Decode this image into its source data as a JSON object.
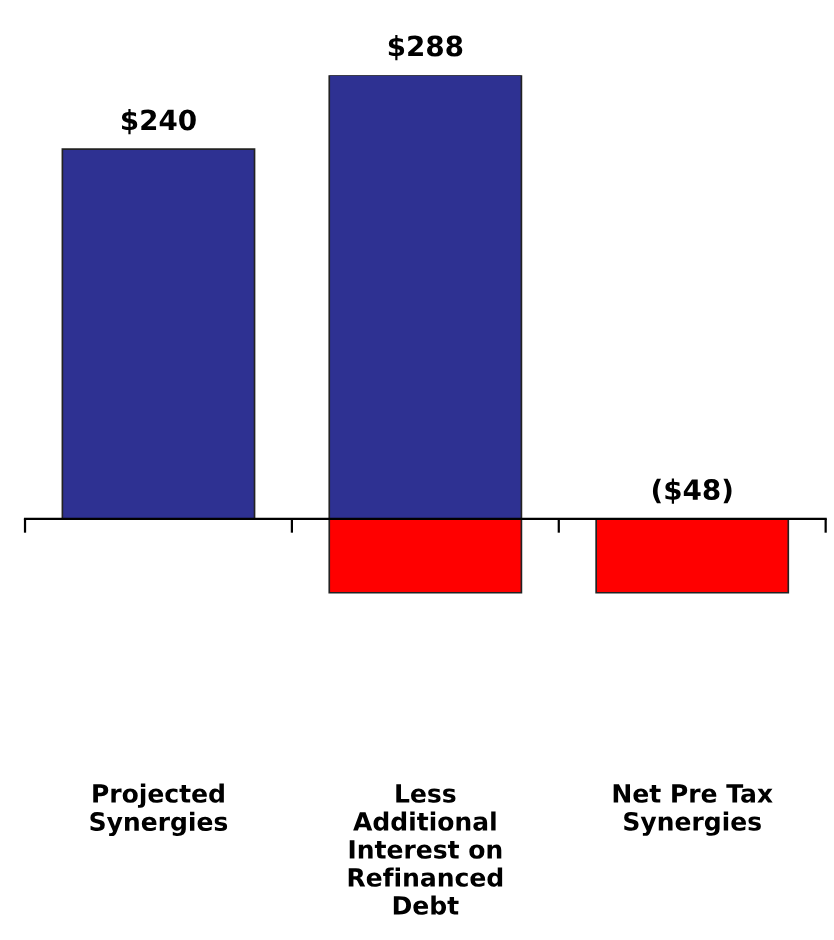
{
  "chart_data": {
    "type": "bar",
    "categories": [
      "Projected\nSynergies",
      "Less\nAdditional\nInterest on\nRefinanced\nDebt",
      "Net Pre Tax\nSynergies"
    ],
    "series": [
      {
        "color": "#2e3192",
        "values": [
          240,
          288,
          null
        ],
        "value_labels": [
          "$240",
          "$288",
          null
        ]
      },
      {
        "color": "#ff0000",
        "values": [
          null,
          -48,
          -48
        ],
        "value_labels": [
          null,
          null,
          "($48)"
        ]
      }
    ],
    "grid": false
  }
}
